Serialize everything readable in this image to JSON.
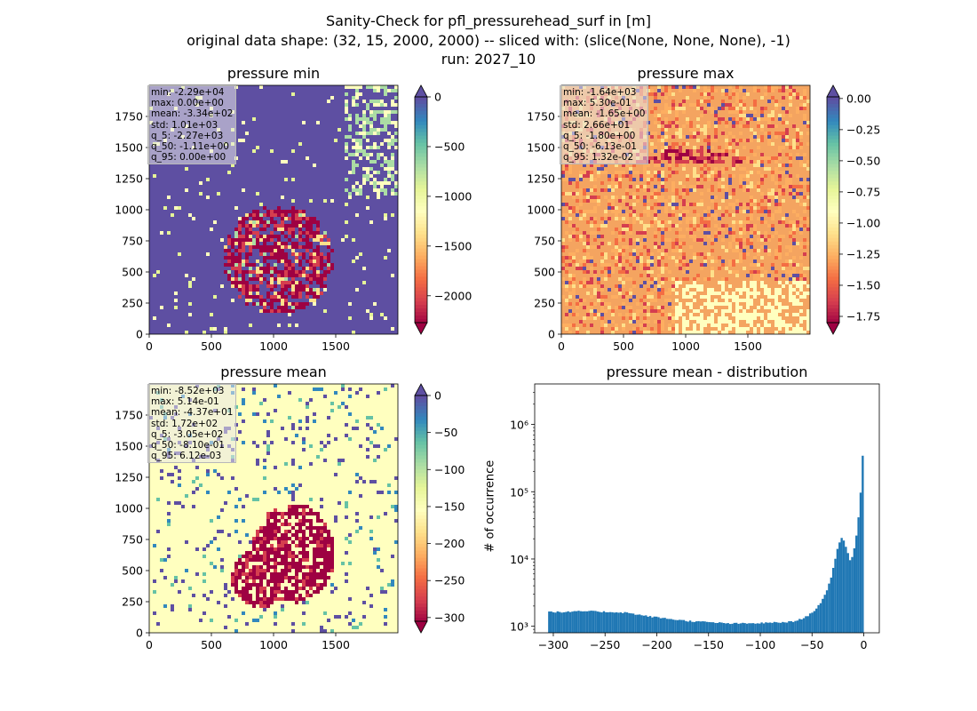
{
  "suptitle": {
    "line1": "Sanity-Check for pfl_pressurehead_surf in [m]",
    "line2": "original data shape: (32, 15, 2000, 2000) -- sliced with: (slice(None, None, None), -1)",
    "line3": "run: 2027_10"
  },
  "panels": {
    "min": {
      "title": "pressure min",
      "stats": [
        "min: -2.29e+04",
        "max: 0.00e+00",
        "mean: -3.34e+02",
        "std: 1.01e+03",
        "q_5: -2.27e+03",
        "q_50: -1.11e+00",
        "q_95: 0.00e+00"
      ],
      "colorbar": {
        "ticks": [
          "0",
          "−500",
          "−1000",
          "−1500",
          "−2000"
        ],
        "values": [
          0,
          -500,
          -1000,
          -1500,
          -2000
        ],
        "range": [
          -2270,
          0
        ]
      }
    },
    "max": {
      "title": "pressure max",
      "stats": [
        "min: -1.64e+03",
        "max: 5.30e-01",
        "mean: -1.65e+00",
        "std: 2.66e+01",
        "q_5: -1.80e+00",
        "q_50: -6.13e-01",
        "q_95: 1.32e-02"
      ],
      "colorbar": {
        "ticks": [
          "0.00",
          "−0.25",
          "−0.50",
          "−0.75",
          "−1.00",
          "−1.25",
          "−1.50",
          "−1.75"
        ],
        "values": [
          0,
          -0.25,
          -0.5,
          -0.75,
          -1.0,
          -1.25,
          -1.5,
          -1.75
        ],
        "range": [
          -1.8,
          0.0132
        ]
      }
    },
    "mean": {
      "title": "pressure mean",
      "stats": [
        "min: -8.52e+03",
        "max: 5.14e-01",
        "mean: -4.37e+01",
        "std: 1.72e+02",
        "q_5: -3.05e+02",
        "q_50: -8.10e-01",
        "q_95: 6.12e-03"
      ],
      "colorbar": {
        "ticks": [
          "0",
          "−50",
          "−100",
          "−150",
          "−200",
          "−250",
          "−300"
        ],
        "values": [
          0,
          -50,
          -100,
          -150,
          -200,
          -250,
          -300
        ],
        "range": [
          -305,
          0.00612
        ]
      }
    }
  },
  "map_axes": {
    "x_ticks": [
      "0",
      "500",
      "1000",
      "1500"
    ],
    "y_ticks": [
      "0",
      "250",
      "500",
      "750",
      "1000",
      "1250",
      "1500",
      "1750"
    ]
  },
  "colors": {
    "cmap_spectral": [
      "#9e0142",
      "#d53e4f",
      "#f46d43",
      "#fdae61",
      "#fee08b",
      "#ffffbf",
      "#e6f598",
      "#abdda4",
      "#66c2a5",
      "#3288bd",
      "#5e4fa2"
    ],
    "bar": "#1f77b4"
  },
  "chart_data": [
    {
      "type": "heatmap",
      "title": "pressure min",
      "xlim": [
        0,
        2000
      ],
      "ylim": [
        0,
        2000
      ],
      "colorbar_range": [
        -2270,
        0
      ],
      "summary": {
        "min": -22900,
        "max": 0,
        "mean": -334,
        "std": 1010,
        "q_5": -2270,
        "q_50": -1.11,
        "q_95": 0
      }
    },
    {
      "type": "heatmap",
      "title": "pressure max",
      "xlim": [
        0,
        2000
      ],
      "ylim": [
        0,
        2000
      ],
      "colorbar_range": [
        -1.8,
        0.0132
      ],
      "summary": {
        "min": -1640,
        "max": 0.53,
        "mean": -1.65,
        "std": 26.6,
        "q_5": -1.8,
        "q_50": -0.613,
        "q_95": 0.0132
      }
    },
    {
      "type": "heatmap",
      "title": "pressure mean",
      "xlim": [
        0,
        2000
      ],
      "ylim": [
        0,
        2000
      ],
      "colorbar_range": [
        -305,
        0.00612
      ],
      "summary": {
        "min": -8520,
        "max": 0.514,
        "mean": -43.7,
        "std": 172,
        "q_5": -305,
        "q_50": -0.81,
        "q_95": 0.00612
      }
    },
    {
      "type": "bar",
      "title": "pressure mean - distribution",
      "xlabel": "",
      "ylabel": "# of occurrence",
      "yscale": "log",
      "xlim": [
        -318,
        15
      ],
      "ylim": [
        800,
        4000000
      ],
      "x_ticks": [
        "−300",
        "−250",
        "−200",
        "−150",
        "−100",
        "−50",
        "0"
      ],
      "x_tick_values": [
        -300,
        -250,
        -200,
        -150,
        -100,
        -50,
        0
      ],
      "y_ticks": [
        "10³",
        "10⁴",
        "10⁵",
        "10⁶"
      ],
      "y_tick_values": [
        1000,
        10000,
        100000,
        1000000
      ],
      "x_range": [
        -305,
        0
      ],
      "profile_x": [
        -305,
        -290,
        -270,
        -250,
        -230,
        -210,
        -190,
        -170,
        -150,
        -130,
        -110,
        -90,
        -75,
        -65,
        -55,
        -48,
        -42,
        -36,
        -32,
        -28,
        -25,
        -22,
        -19,
        -16,
        -13,
        -10,
        -8,
        -6,
        -4,
        -3,
        -2,
        -1,
        0
      ],
      "profile_y": [
        1650,
        1620,
        1680,
        1640,
        1600,
        1420,
        1300,
        1200,
        1150,
        1100,
        1100,
        1130,
        1150,
        1200,
        1400,
        1700,
        2200,
        3200,
        5000,
        9000,
        15000,
        21000,
        19000,
        13000,
        9500,
        12000,
        18000,
        30000,
        60000,
        100000,
        170000,
        350000,
        2600000
      ]
    }
  ]
}
